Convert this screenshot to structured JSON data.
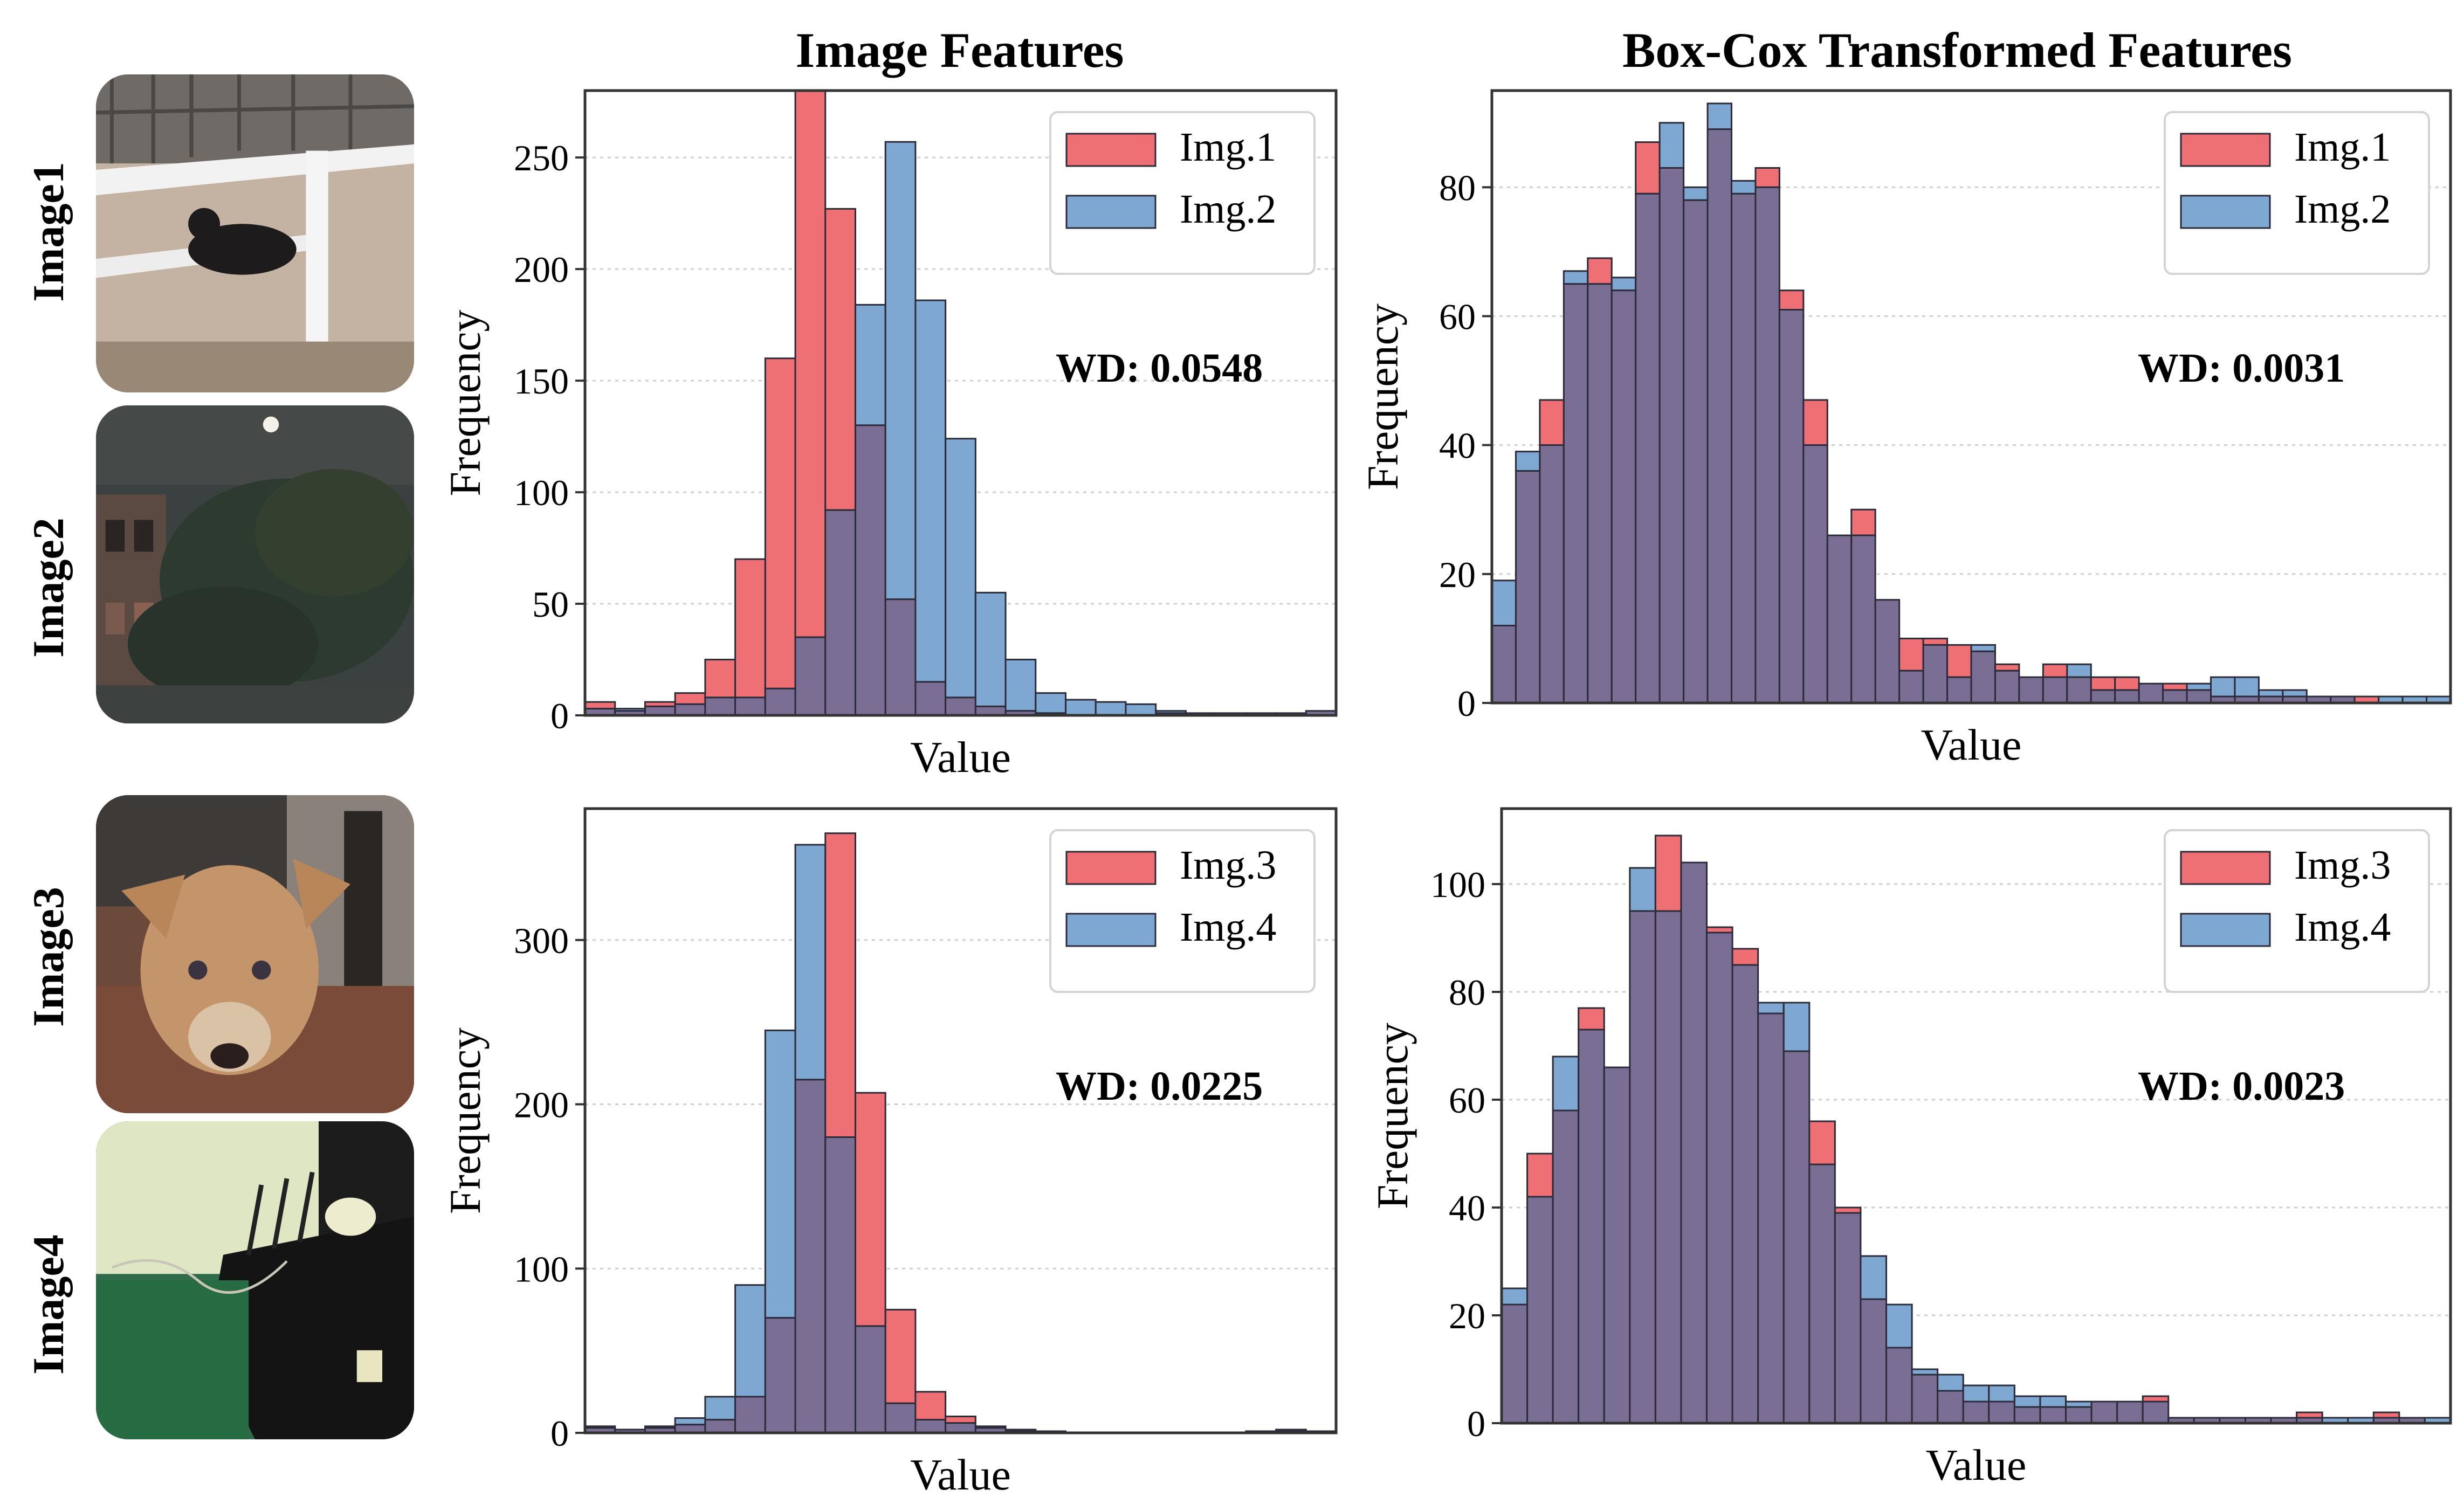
{
  "titles": {
    "left": "Image Features",
    "right": "Box-Cox Transformed Features"
  },
  "row_labels": [
    "Image1",
    "Image2",
    "Image3",
    "Image4"
  ],
  "thumbnails": [
    {
      "label": "Image1",
      "content": "cow-lying-in-dirt-pen"
    },
    {
      "label": "Image2",
      "content": "night-building-with-trees"
    },
    {
      "label": "Image3",
      "content": "dog-close-up-indoors"
    },
    {
      "label": "Image4",
      "content": "bed-with-green-floor"
    }
  ],
  "colors": {
    "red": "#ee6f74",
    "blue": "#7ea8d1",
    "overlap": "#7b6e95",
    "edge": "#2b2b3a"
  },
  "chart_data": [
    {
      "type": "bar",
      "subtype": "histogram-overlay",
      "xlabel": "Value",
      "ylabel": "Frequency",
      "ylim": [
        0,
        280
      ],
      "yticks": [
        0,
        50,
        100,
        150,
        200,
        250
      ],
      "annotation": "WD: 0.0548",
      "legend_position": "top-right",
      "grid": true,
      "series": [
        {
          "name": "Img.1",
          "color": "red",
          "values": [
            6,
            2,
            6,
            10,
            25,
            70,
            160,
            280,
            227,
            130,
            52,
            15,
            8,
            4,
            2,
            1,
            0,
            0,
            0,
            1,
            1,
            0,
            0,
            0,
            2
          ]
        },
        {
          "name": "Img.2",
          "color": "blue",
          "values": [
            3,
            3,
            4,
            5,
            8,
            8,
            12,
            35,
            92,
            184,
            257,
            186,
            124,
            55,
            25,
            10,
            7,
            6,
            5,
            2,
            1,
            1,
            1,
            1,
            2
          ]
        }
      ]
    },
    {
      "type": "bar",
      "subtype": "histogram-overlay",
      "xlabel": "Value",
      "ylabel": "Frequency",
      "ylim": [
        0,
        95
      ],
      "yticks": [
        0,
        20,
        40,
        60,
        80
      ],
      "annotation": "WD: 0.0031",
      "legend_position": "top-right",
      "grid": true,
      "series": [
        {
          "name": "Img.1",
          "color": "red",
          "values": [
            12,
            36,
            47,
            65,
            69,
            64,
            87,
            83,
            78,
            89,
            79,
            83,
            64,
            47,
            26,
            30,
            16,
            10,
            10,
            9,
            8,
            6,
            4,
            6,
            4,
            4,
            4,
            3,
            3,
            2,
            1,
            1,
            1,
            1,
            1,
            1,
            1,
            0,
            0,
            0
          ]
        },
        {
          "name": "Img.2",
          "color": "blue",
          "values": [
            19,
            39,
            40,
            67,
            65,
            66,
            79,
            90,
            80,
            93,
            81,
            80,
            61,
            40,
            26,
            26,
            16,
            5,
            9,
            4,
            9,
            5,
            4,
            4,
            6,
            2,
            2,
            3,
            2,
            3,
            4,
            4,
            2,
            2,
            1,
            1,
            0,
            1,
            1,
            1
          ]
        }
      ]
    },
    {
      "type": "bar",
      "subtype": "histogram-overlay",
      "xlabel": "Value",
      "ylabel": "Frequency",
      "ylim": [
        0,
        380
      ],
      "yticks": [
        0,
        100,
        200,
        300
      ],
      "annotation": "WD: 0.0225",
      "legend_position": "top-right",
      "grid": true,
      "series": [
        {
          "name": "Img.3",
          "color": "red",
          "values": [
            3,
            2,
            3,
            5,
            8,
            22,
            70,
            215,
            365,
            207,
            75,
            25,
            10,
            4,
            2,
            1,
            0,
            0,
            0,
            0,
            0,
            0,
            1,
            2,
            1
          ]
        },
        {
          "name": "Img.4",
          "color": "blue",
          "values": [
            4,
            2,
            4,
            9,
            22,
            90,
            245,
            358,
            180,
            65,
            18,
            8,
            6,
            3,
            1,
            1,
            0,
            0,
            0,
            0,
            0,
            0,
            0,
            1,
            1
          ]
        }
      ]
    },
    {
      "type": "bar",
      "subtype": "histogram-overlay",
      "xlabel": "Value",
      "ylabel": "Frequency",
      "ylim": [
        0,
        114
      ],
      "yticks": [
        0,
        20,
        40,
        60,
        80,
        100
      ],
      "annotation": "WD: 0.0023",
      "legend_position": "top-right",
      "grid": true,
      "series": [
        {
          "name": "Img.3",
          "color": "red",
          "values": [
            22,
            50,
            58,
            77,
            66,
            95,
            109,
            104,
            92,
            88,
            76,
            69,
            56,
            40,
            23,
            14,
            9,
            6,
            4,
            4,
            3,
            3,
            3,
            4,
            4,
            5,
            1,
            1,
            1,
            1,
            1,
            2,
            0,
            0,
            2,
            1,
            0
          ]
        },
        {
          "name": "Img.4",
          "color": "blue",
          "values": [
            25,
            42,
            68,
            73,
            66,
            103,
            95,
            104,
            91,
            85,
            78,
            78,
            48,
            39,
            31,
            22,
            10,
            9,
            7,
            7,
            5,
            5,
            4,
            4,
            4,
            4,
            1,
            1,
            1,
            1,
            1,
            1,
            1,
            1,
            1,
            1,
            1
          ]
        }
      ]
    }
  ]
}
